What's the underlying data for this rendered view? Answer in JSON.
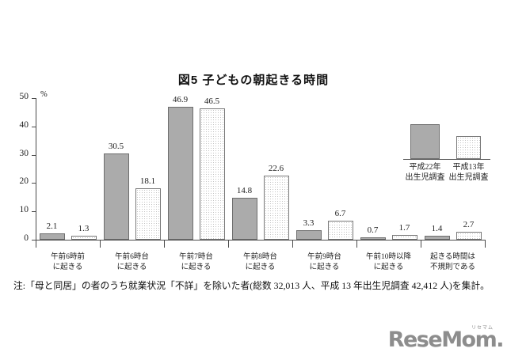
{
  "page": {
    "note": "注:「母と同居」の者のうち就業状況「不詳」を除いた者(総数 32,013 人、平成 13 年出生児調査 42,412 人)を集計。",
    "logo": {
      "text": "ReseMom.",
      "ruby": "リセマム"
    }
  },
  "chart_data": {
    "type": "bar",
    "title": "図5 子どもの朝起きる時間",
    "unit_label": "%",
    "ylim": [
      0,
      50
    ],
    "yticks": [
      0,
      10,
      20,
      30,
      40,
      50
    ],
    "grid": false,
    "legend_position": "top-right",
    "categories": [
      [
        "午前6時前",
        "に起きる"
      ],
      [
        "午前6時台",
        "に起きる"
      ],
      [
        "午前7時台",
        "に起きる"
      ],
      [
        "午前8時台",
        "に起きる"
      ],
      [
        "午前9時台",
        "に起きる"
      ],
      [
        "午前10時以降",
        "に起きる"
      ],
      [
        "起きる時間は",
        "不規則である"
      ]
    ],
    "series": [
      {
        "name_lines": [
          "平成22年",
          "出生児調査"
        ],
        "style": "solid",
        "values": [
          2.1,
          30.5,
          46.9,
          14.8,
          3.3,
          0.7,
          1.4
        ]
      },
      {
        "name_lines": [
          "平成13年",
          "出生児調査"
        ],
        "style": "dotted",
        "values": [
          1.3,
          18.1,
          46.5,
          22.6,
          6.7,
          1.7,
          2.7
        ]
      }
    ],
    "colors": {
      "solid_bar_fill": "#ababab",
      "bar_border": "#6e6e6e",
      "dotted_bar_dot": "#c3c3c3",
      "axis": "#4a4a4a",
      "text": "#1a1a1a",
      "logo_gray": "#8d8d8d"
    }
  }
}
